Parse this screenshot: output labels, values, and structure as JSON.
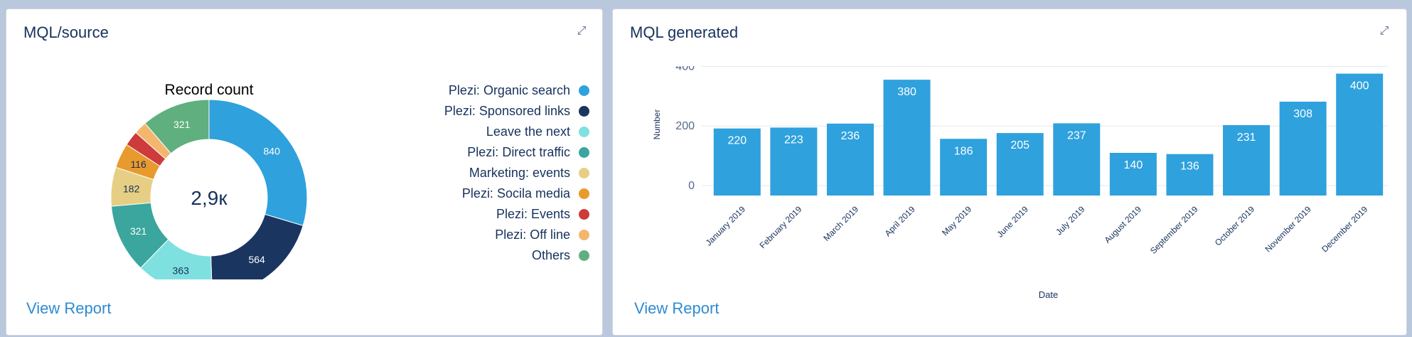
{
  "left_card": {
    "title": "MQL/source",
    "expand_icon": "expand-icon",
    "view_report": "View Report"
  },
  "right_card": {
    "title": "MQL generated",
    "expand_icon": "expand-icon",
    "view_report": "View Report"
  },
  "chart_data": [
    {
      "type": "pie",
      "title": "Record count",
      "center_label": "2,9к",
      "slices": [
        {
          "label": "Plezi: Organic search",
          "value": 840,
          "color": "#2fa1dd"
        },
        {
          "label": "Plezi: Sponsored links",
          "value": 564,
          "color": "#1b3561"
        },
        {
          "label": "Leave the next",
          "value": 363,
          "color": "#7fe0e0"
        },
        {
          "label": "Plezi: Direct traffic",
          "value": 321,
          "color": "#3aa69e"
        },
        {
          "label": "Marketing: events",
          "value": 182,
          "color": "#e6cf84"
        },
        {
          "label": "Plezi: Socila media",
          "value": 116,
          "color": "#e99a2c"
        },
        {
          "label": "Plezi: Events",
          "value": 70,
          "value_shown": "",
          "color": "#cd3b3b"
        },
        {
          "label": "Plezi: Off line",
          "value": 60,
          "value_shown": "",
          "color": "#f3b66d"
        },
        {
          "label": "Others",
          "value": 321,
          "color": "#5fb07e"
        }
      ]
    },
    {
      "type": "bar",
      "categories": [
        "January 2019",
        "February 2019",
        "March 2019",
        "April 2019",
        "May 2019",
        "June 2019",
        "July 2019",
        "August 2019",
        "September 2019",
        "October 2019",
        "November 2019",
        "December 2019"
      ],
      "values": [
        220,
        223,
        236,
        380,
        186,
        205,
        237,
        140,
        136,
        231,
        308,
        400
      ],
      "xlabel": "Date",
      "ylabel": "Number",
      "yticks": [
        0,
        200,
        400
      ],
      "ylim": [
        0,
        420
      ],
      "bar_color": "#2fa1dd",
      "grid": true
    }
  ]
}
